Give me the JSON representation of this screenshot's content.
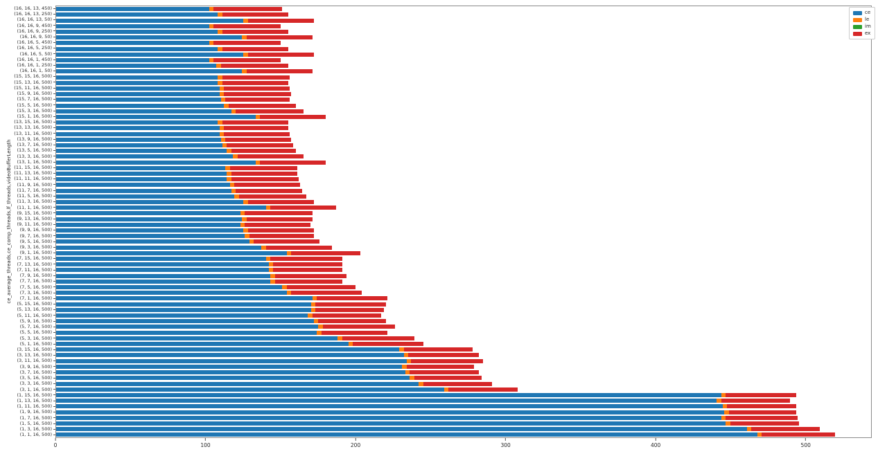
{
  "chart_data": {
    "type": "bar",
    "orientation": "horizontal",
    "stacked": true,
    "title": "",
    "xlabel": "",
    "ylabel": "ce_average_threads,ce_comp_threads,lf_threads,videoBufferLength",
    "xlim": [
      0,
      544
    ],
    "xticks": [
      0,
      100,
      200,
      300,
      400,
      500
    ],
    "grid": false,
    "legend": {
      "position": "upper right",
      "entries": [
        {
          "label": "ce",
          "color": "#1f77b4"
        },
        {
          "label": "le",
          "color": "#ff7f0e"
        },
        {
          "label": "im",
          "color": "#2ca02c"
        },
        {
          "label": "ex",
          "color": "#d62728"
        }
      ]
    },
    "categories": [
      "(16, 16, 13, 450)",
      "(16, 16, 13, 250)",
      "(16, 16, 13, 50)",
      "(16, 16, 9, 450)",
      "(16, 16, 9, 250)",
      "(16, 16, 9, 50)",
      "(16, 16, 5, 450)",
      "(16, 16, 5, 250)",
      "(16, 16, 5, 50)",
      "(16, 16, 1, 450)",
      "(16, 16, 1, 250)",
      "(16, 16, 1, 50)",
      "(15, 15, 16, 500)",
      "(15, 13, 16, 500)",
      "(15, 11, 16, 500)",
      "(15, 9, 16, 500)",
      "(15, 7, 16, 500)",
      "(15, 5, 16, 500)",
      "(15, 3, 16, 500)",
      "(15, 1, 16, 500)",
      "(13, 15, 16, 500)",
      "(13, 13, 16, 500)",
      "(13, 11, 16, 500)",
      "(13, 9, 16, 500)",
      "(13, 7, 16, 500)",
      "(13, 5, 16, 500)",
      "(13, 3, 16, 500)",
      "(13, 1, 16, 500)",
      "(11, 15, 16, 500)",
      "(11, 13, 16, 500)",
      "(11, 11, 16, 500)",
      "(11, 9, 16, 500)",
      "(11, 7, 16, 500)",
      "(11, 5, 16, 500)",
      "(11, 3, 16, 500)",
      "(11, 1, 16, 500)",
      "(9, 15, 16, 500)",
      "(9, 13, 16, 500)",
      "(9, 11, 16, 500)",
      "(9, 9, 16, 500)",
      "(9, 7, 16, 500)",
      "(9, 5, 16, 500)",
      "(9, 3, 16, 500)",
      "(9, 1, 16, 500)",
      "(7, 15, 16, 500)",
      "(7, 13, 16, 500)",
      "(7, 11, 16, 500)",
      "(7, 9, 16, 500)",
      "(7, 7, 16, 500)",
      "(7, 5, 16, 500)",
      "(7, 3, 16, 500)",
      "(7, 1, 16, 500)",
      "(5, 15, 16, 500)",
      "(5, 13, 16, 500)",
      "(5, 11, 16, 500)",
      "(5, 9, 16, 500)",
      "(5, 7, 16, 500)",
      "(5, 5, 16, 500)",
      "(5, 3, 16, 500)",
      "(5, 1, 16, 500)",
      "(3, 15, 16, 500)",
      "(3, 13, 16, 500)",
      "(3, 11, 16, 500)",
      "(3, 9, 16, 500)",
      "(3, 7, 16, 500)",
      "(3, 5, 16, 500)",
      "(3, 3, 16, 500)",
      "(3, 1, 16, 500)",
      "(1, 15, 16, 500)",
      "(1, 13, 16, 500)",
      "(1, 11, 16, 500)",
      "(1, 9, 16, 500)",
      "(1, 7, 16, 500)",
      "(1, 5, 16, 500)",
      "(1, 3, 16, 500)",
      "(1, 1, 16, 500)"
    ],
    "series": [
      {
        "name": "ce",
        "color": "#1f77b4",
        "values": [
          102,
          108,
          125,
          102,
          108,
          124,
          102,
          108,
          125,
          102,
          107,
          124,
          108,
          108,
          109,
          109,
          110,
          112,
          117,
          133,
          108,
          109,
          109,
          110,
          111,
          114,
          118,
          133,
          113,
          114,
          114,
          116,
          117,
          119,
          125,
          140,
          123,
          124,
          123,
          125,
          126,
          129,
          137,
          154,
          140,
          142,
          142,
          143,
          143,
          151,
          154,
          171,
          170,
          170,
          168,
          172,
          175,
          174,
          188,
          195,
          229,
          232,
          234,
          231,
          233,
          236,
          242,
          259,
          444,
          441,
          445,
          446,
          444,
          447,
          461,
          468
        ]
      },
      {
        "name": "le",
        "color": "#ff7f0e",
        "values": [
          3,
          3,
          3,
          3,
          3,
          3,
          3,
          3,
          3,
          3,
          3,
          3,
          3,
          3,
          3,
          3,
          3,
          3,
          3,
          3,
          3,
          3,
          3,
          3,
          3,
          3,
          3,
          3,
          3,
          3,
          3,
          3,
          3,
          3,
          3,
          3,
          3,
          3,
          3,
          3,
          3,
          3,
          3,
          3,
          3,
          3,
          3,
          3,
          3,
          3,
          3,
          3,
          3,
          3,
          3,
          3,
          3,
          3,
          3,
          3,
          3,
          3,
          3,
          3,
          3,
          3,
          3,
          3,
          3,
          3,
          3,
          3,
          3,
          3,
          3,
          3
        ]
      },
      {
        "name": "im",
        "color": "#2ca02c",
        "values": [
          0,
          0,
          0,
          0,
          0,
          0,
          0,
          0,
          0,
          0,
          0,
          0,
          0,
          0,
          0,
          0,
          0,
          0,
          0,
          0,
          0,
          0,
          0,
          0,
          0,
          0,
          0,
          0,
          0,
          0,
          0,
          0,
          0,
          0,
          0,
          0,
          0,
          0,
          0,
          0,
          0,
          0,
          0,
          0,
          0,
          0,
          0,
          0,
          0,
          0,
          0,
          0,
          0,
          0,
          0,
          0,
          0,
          0,
          0,
          0,
          0,
          0,
          0,
          0,
          0,
          0,
          0,
          0,
          0,
          0,
          0,
          0,
          0,
          0,
          0,
          0
        ]
      },
      {
        "name": "ex",
        "color": "#d62728",
        "values": [
          46,
          44,
          44,
          45,
          44,
          44,
          45,
          44,
          44,
          45,
          45,
          44,
          45,
          44,
          44,
          45,
          43,
          45,
          45,
          44,
          44,
          43,
          44,
          44,
          44,
          43,
          44,
          44,
          45,
          44,
          45,
          44,
          44,
          45,
          44,
          44,
          45,
          44,
          44,
          44,
          43,
          44,
          44,
          46,
          48,
          46,
          46,
          48,
          45,
          46,
          47,
          47,
          47,
          46,
          46,
          45,
          48,
          44,
          48,
          47,
          46,
          47,
          48,
          45,
          46,
          45,
          46,
          46,
          47,
          46,
          46,
          45,
          48,
          46,
          46,
          49
        ]
      }
    ]
  }
}
